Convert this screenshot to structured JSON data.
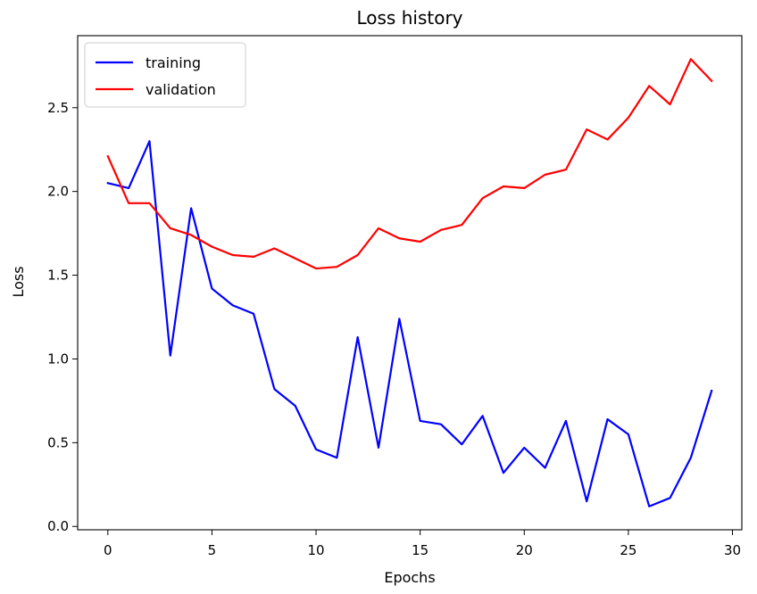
{
  "chart_data": {
    "type": "line",
    "title": "Loss history",
    "xlabel": "Epochs",
    "ylabel": "Loss",
    "xlim": [
      -1.45,
      30.45
    ],
    "ylim": [
      -0.02,
      2.93
    ],
    "xticks": [
      0,
      5,
      10,
      15,
      20,
      25,
      30
    ],
    "yticks": [
      0.0,
      0.5,
      1.0,
      1.5,
      2.0,
      2.5
    ],
    "ytick_labels": [
      "0.0",
      "0.5",
      "1.0",
      "1.5",
      "2.0",
      "2.5"
    ],
    "grid": false,
    "legend_position": "top-left",
    "x": [
      0,
      1,
      2,
      3,
      4,
      5,
      6,
      7,
      8,
      9,
      10,
      11,
      12,
      13,
      14,
      15,
      16,
      17,
      18,
      19,
      20,
      21,
      22,
      23,
      24,
      25,
      26,
      27,
      28,
      29
    ],
    "series": [
      {
        "name": "training",
        "color": "#0000ff",
        "values": [
          2.05,
          2.02,
          2.3,
          1.02,
          1.9,
          1.42,
          1.32,
          1.27,
          0.82,
          0.72,
          0.46,
          0.41,
          1.13,
          0.47,
          1.24,
          0.63,
          0.61,
          0.49,
          0.66,
          0.32,
          0.47,
          0.35,
          0.63,
          0.15,
          0.64,
          0.55,
          0.12,
          0.17,
          0.41,
          0.81
        ]
      },
      {
        "name": "validation",
        "color": "#ff0000",
        "values": [
          2.21,
          1.93,
          1.93,
          1.78,
          1.74,
          1.67,
          1.62,
          1.61,
          1.66,
          1.6,
          1.54,
          1.55,
          1.62,
          1.78,
          1.72,
          1.7,
          1.77,
          1.8,
          1.96,
          2.03,
          2.02,
          2.1,
          2.13,
          2.37,
          2.31,
          2.44,
          2.63,
          2.52,
          2.79,
          2.66
        ]
      }
    ]
  }
}
